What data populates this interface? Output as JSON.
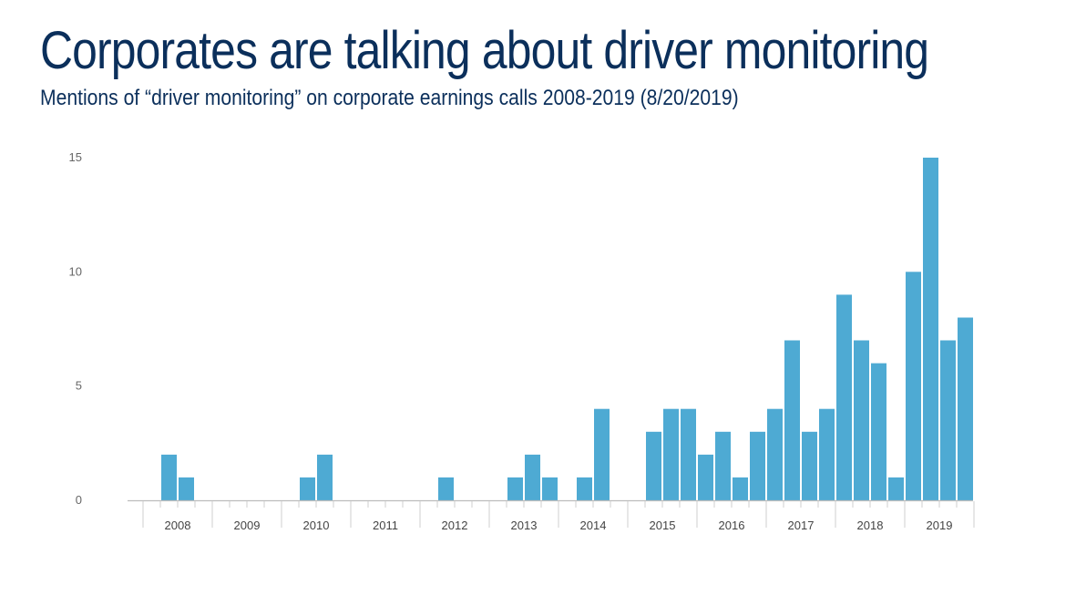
{
  "header": {
    "title": "Corporates are talking about driver monitoring",
    "subtitle": "Mentions of “driver monitoring” on corporate earnings calls 2008-2019 (8/20/2019)"
  },
  "chart_data": {
    "type": "bar",
    "title": "Corporates are talking about driver monitoring",
    "subtitle": "Mentions of “driver monitoring” on corporate earnings calls 2008-2019 (8/20/2019)",
    "xlabel": "",
    "ylabel": "",
    "ylim": [
      0,
      15
    ],
    "yticks": [
      0,
      5,
      10,
      15
    ],
    "grid": false,
    "bar_color": "#4eaad3",
    "years": [
      "2008",
      "2009",
      "2010",
      "2011",
      "2012",
      "2013",
      "2014",
      "2015",
      "2016",
      "2017",
      "2018",
      "2019"
    ],
    "categories": [
      "2008 Q1",
      "2008 Q2",
      "2008 Q3",
      "2008 Q4",
      "2009 Q1",
      "2009 Q2",
      "2009 Q3",
      "2009 Q4",
      "2010 Q1",
      "2010 Q2",
      "2010 Q3",
      "2010 Q4",
      "2011 Q1",
      "2011 Q2",
      "2011 Q3",
      "2011 Q4",
      "2012 Q1",
      "2012 Q2",
      "2012 Q3",
      "2012 Q4",
      "2013 Q1",
      "2013 Q2",
      "2013 Q3",
      "2013 Q4",
      "2014 Q1",
      "2014 Q2",
      "2014 Q3",
      "2014 Q4",
      "2015 Q1",
      "2015 Q2",
      "2015 Q3",
      "2015 Q4",
      "2016 Q1",
      "2016 Q2",
      "2016 Q3",
      "2016 Q4",
      "2017 Q1",
      "2017 Q2",
      "2017 Q3",
      "2017 Q4",
      "2018 Q1",
      "2018 Q2",
      "2018 Q3",
      "2018 Q4",
      "2019 Q1",
      "2019 Q2",
      "2019 Q3",
      "2019 Q4"
    ],
    "values": [
      0,
      2,
      1,
      0,
      0,
      0,
      0,
      0,
      0,
      1,
      2,
      0,
      0,
      0,
      0,
      0,
      0,
      1,
      0,
      0,
      0,
      1,
      2,
      1,
      0,
      1,
      4,
      0,
      0,
      3,
      4,
      4,
      2,
      3,
      1,
      3,
      4,
      7,
      3,
      4,
      9,
      7,
      6,
      1,
      10,
      15,
      7,
      8
    ]
  }
}
